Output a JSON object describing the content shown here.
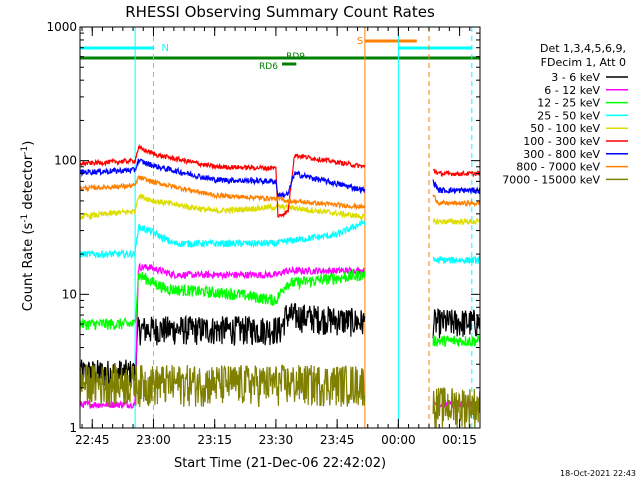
{
  "chart_data": {
    "type": "line",
    "title": "RHESSI Observing Summary Count Rates",
    "xlabel": "Start Time (21-Dec-06 22:42:02)",
    "ylabel": "Count Rate (s",
    "ylabel_sup1": "-1",
    "ylabel_mid": " detector",
    "ylabel_sup2": "-1",
    "ylabel_end": ")",
    "yscale": "log",
    "ylim": [
      1,
      1000
    ],
    "xlim_minutes": [
      -3.0,
      95.0
    ],
    "x_ticks": [
      {
        "m": 0,
        "label": "22:45"
      },
      {
        "m": 15,
        "label": "23:00"
      },
      {
        "m": 30,
        "label": "23:15"
      },
      {
        "m": 45,
        "label": "23:30"
      },
      {
        "m": 60,
        "label": "23:45"
      },
      {
        "m": 75,
        "label": "00:00"
      },
      {
        "m": 90,
        "label": "00:15"
      }
    ],
    "y_ticks": [
      {
        "v": 1,
        "label": "1"
      },
      {
        "v": 10,
        "label": "10"
      },
      {
        "v": 100,
        "label": "100"
      },
      {
        "v": 1000,
        "label": "1000"
      }
    ],
    "legend_header": [
      "Det 1,3,4,5,6,9,",
      "FDecim 1, Att 0"
    ],
    "timestamp": "18-Oct-2021 22:43",
    "gaps_minutes": [
      [
        66.8,
        83.5
      ]
    ],
    "series": [
      {
        "name": "3 - 6 keV",
        "color": "#000000",
        "levels": [
          [
            -3,
            2.6
          ],
          [
            10.5,
            2.6
          ],
          [
            11.3,
            5.5
          ],
          [
            46.2,
            5.5
          ],
          [
            47.5,
            7
          ],
          [
            66.8,
            6.2
          ]
        ],
        "noise": 0.25
      },
      {
        "name": "6 - 12 keV",
        "color": "#ff00ff",
        "levels": [
          [
            -3,
            1.5
          ],
          [
            10.5,
            1.5
          ],
          [
            11.3,
            16
          ],
          [
            14,
            16
          ],
          [
            20,
            14
          ],
          [
            45,
            14
          ],
          [
            47.5,
            15
          ],
          [
            66.8,
            15
          ],
          [
            83.5,
            1.5
          ],
          [
            85,
            1.5
          ]
        ],
        "noise": 0.06
      },
      {
        "name": "12 - 25 keV",
        "color": "#00ff00",
        "levels": [
          [
            -3,
            6
          ],
          [
            10.5,
            6
          ],
          [
            11.3,
            14
          ],
          [
            18,
            11
          ],
          [
            36,
            10
          ],
          [
            45,
            9
          ],
          [
            47.5,
            12
          ],
          [
            66.8,
            14
          ],
          [
            83.5,
            4.5
          ],
          [
            85,
            4.5
          ]
        ],
        "noise": 0.1
      },
      {
        "name": "25 - 50 keV",
        "color": "#00ffff",
        "levels": [
          [
            -3,
            20
          ],
          [
            10.5,
            20
          ],
          [
            11.3,
            32
          ],
          [
            14,
            30
          ],
          [
            20,
            24
          ],
          [
            45,
            24
          ],
          [
            47.5,
            25
          ],
          [
            60,
            28
          ],
          [
            66.8,
            35
          ],
          [
            83.5,
            18
          ],
          [
            85,
            18
          ]
        ],
        "noise": 0.06
      },
      {
        "name": "50 - 100 keV",
        "color": "#dddd00",
        "levels": [
          [
            -3,
            38
          ],
          [
            10.5,
            42
          ],
          [
            11.3,
            55
          ],
          [
            15,
            50
          ],
          [
            30,
            42
          ],
          [
            45,
            45
          ],
          [
            47.5,
            45
          ],
          [
            66.8,
            38
          ],
          [
            83.5,
            35
          ],
          [
            85,
            35
          ]
        ],
        "noise": 0.05
      },
      {
        "name": "100 - 300 keV",
        "color": "#ff0000",
        "levels": [
          [
            -3,
            95
          ],
          [
            10.5,
            100
          ],
          [
            11.3,
            125
          ],
          [
            16,
            110
          ],
          [
            30,
            90
          ],
          [
            45,
            88
          ],
          [
            45.5,
            38
          ],
          [
            48,
            42
          ],
          [
            49.5,
            110
          ],
          [
            66.8,
            90
          ],
          [
            83.5,
            85
          ],
          [
            85,
            80
          ]
        ],
        "noise": 0.04
      },
      {
        "name": "300 - 800 keV",
        "color": "#0000ff",
        "levels": [
          [
            -3,
            82
          ],
          [
            10.5,
            85
          ],
          [
            11.3,
            100
          ],
          [
            16,
            90
          ],
          [
            30,
            72
          ],
          [
            45,
            70
          ],
          [
            45.5,
            55
          ],
          [
            48,
            56
          ],
          [
            49.5,
            80
          ],
          [
            66.8,
            60
          ],
          [
            83.5,
            70
          ],
          [
            85,
            60
          ]
        ],
        "noise": 0.05
      },
      {
        "name": "800 - 7000 keV",
        "color": "#ff8000",
        "levels": [
          [
            -3,
            62
          ],
          [
            10.5,
            65
          ],
          [
            11.3,
            75
          ],
          [
            16,
            68
          ],
          [
            30,
            55
          ],
          [
            45,
            52
          ],
          [
            48,
            50
          ],
          [
            66.8,
            45
          ],
          [
            83.5,
            55
          ],
          [
            85,
            48
          ]
        ],
        "noise": 0.04
      },
      {
        "name": "7000 - 15000 keV",
        "color": "#808000",
        "levels": [
          [
            -3,
            2.2
          ],
          [
            66.8,
            2.2
          ],
          [
            83.5,
            1.5
          ],
          [
            85,
            1.5
          ]
        ],
        "noise": 0.35
      }
    ],
    "annotations": {
      "night_label": "N",
      "saa_label": "S",
      "rd_labels": [
        "RD6",
        "RD9"
      ],
      "saa_marker": {
        "start": 66.8,
        "end": 79.5
      },
      "night_lines": [
        {
          "from": -3,
          "to": 15
        },
        {
          "from": 75,
          "to": 93
        }
      ]
    }
  }
}
